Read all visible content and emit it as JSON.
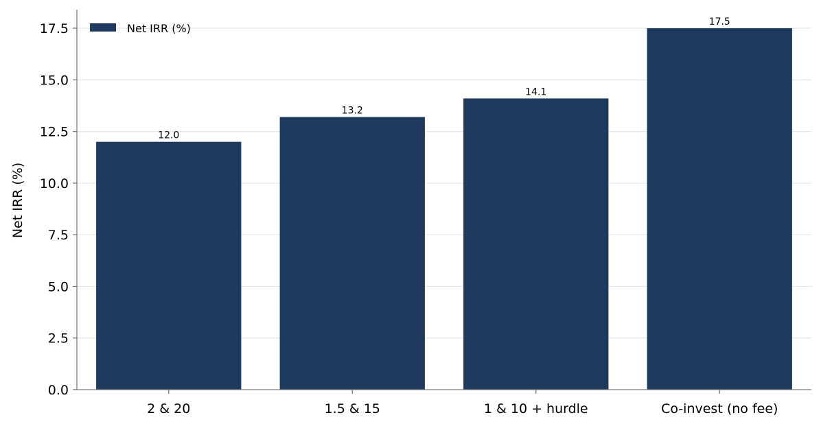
{
  "chart_data": {
    "type": "bar",
    "categories": [
      "2 & 20",
      "1.5 & 15",
      "1 & 10 + hurdle",
      "Co-invest (no fee)"
    ],
    "series": [
      {
        "name": "Net IRR (%)",
        "values": [
          12.0,
          13.2,
          14.1,
          17.5
        ],
        "color": "#1f3a5f"
      }
    ],
    "data_labels": [
      "12.0",
      "13.2",
      "14.1",
      "17.5"
    ],
    "title": "",
    "xlabel": "",
    "ylabel": "Net IRR (%)",
    "ylim": [
      0,
      18.4
    ],
    "yticks": [
      0.0,
      2.5,
      5.0,
      7.5,
      10.0,
      12.5,
      15.0,
      17.5
    ],
    "ytick_labels": [
      "0.0",
      "2.5",
      "5.0",
      "7.5",
      "10.0",
      "12.5",
      "15.0",
      "17.5"
    ],
    "grid": "horizontal",
    "legend": {
      "position": "top-left",
      "entries": [
        "Net IRR (%)"
      ]
    }
  }
}
